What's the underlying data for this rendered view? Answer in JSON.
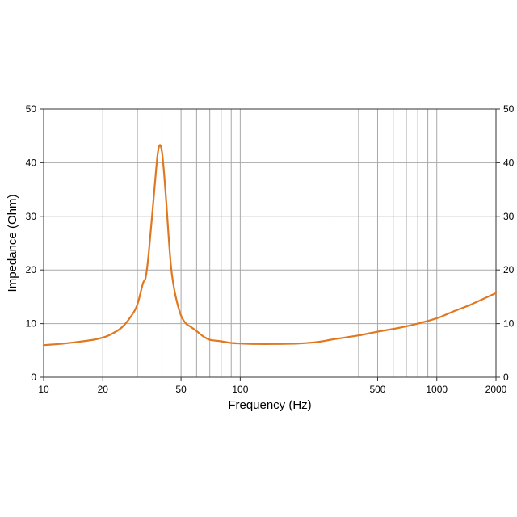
{
  "chart_data": {
    "type": "line",
    "xlabel": "Frequency (Hz)",
    "ylabel": "Impedance (Ohm)",
    "x_scale": "log",
    "xlim": [
      10,
      2000
    ],
    "ylim": [
      0,
      50
    ],
    "x_ticks": [
      10,
      20,
      50,
      100,
      500,
      1000,
      2000
    ],
    "x_tick_labels": [
      "10",
      "20",
      "50",
      "100",
      "500",
      "1000",
      "2000"
    ],
    "x_gridlines": [
      20,
      30,
      40,
      50,
      60,
      70,
      80,
      90,
      100,
      300,
      400,
      500,
      600,
      700,
      800,
      900,
      1000
    ],
    "y_ticks": [
      0,
      10,
      20,
      30,
      40,
      50
    ],
    "y_tick_labels": [
      "0",
      "10",
      "20",
      "30",
      "40",
      "50"
    ],
    "grid": true,
    "line_color": "#e07820",
    "series": [
      {
        "x": [
          10,
          12,
          15,
          18,
          20,
          22,
          25,
          28,
          30,
          32,
          33,
          34,
          35,
          36,
          37,
          38,
          39,
          40,
          41,
          42,
          43,
          44,
          45,
          47,
          50,
          53,
          56,
          60,
          65,
          70,
          80,
          90,
          100,
          120,
          150,
          200,
          250,
          300,
          400,
          500,
          600,
          700,
          800,
          1000,
          1200,
          1500,
          2000
        ],
        "y": [
          6.0,
          6.2,
          6.6,
          7.0,
          7.4,
          8.0,
          9.3,
          11.5,
          13.6,
          17.5,
          18.5,
          22.0,
          27.0,
          32.0,
          37.0,
          41.5,
          43.3,
          42.0,
          38.0,
          33.0,
          27.5,
          22.5,
          19.0,
          15.0,
          11.5,
          10.0,
          9.4,
          8.6,
          7.6,
          7.0,
          6.7,
          6.4,
          6.3,
          6.2,
          6.2,
          6.3,
          6.6,
          7.1,
          7.8,
          8.5,
          9.0,
          9.5,
          10.0,
          11.0,
          12.2,
          13.6,
          15.7
        ]
      }
    ]
  }
}
